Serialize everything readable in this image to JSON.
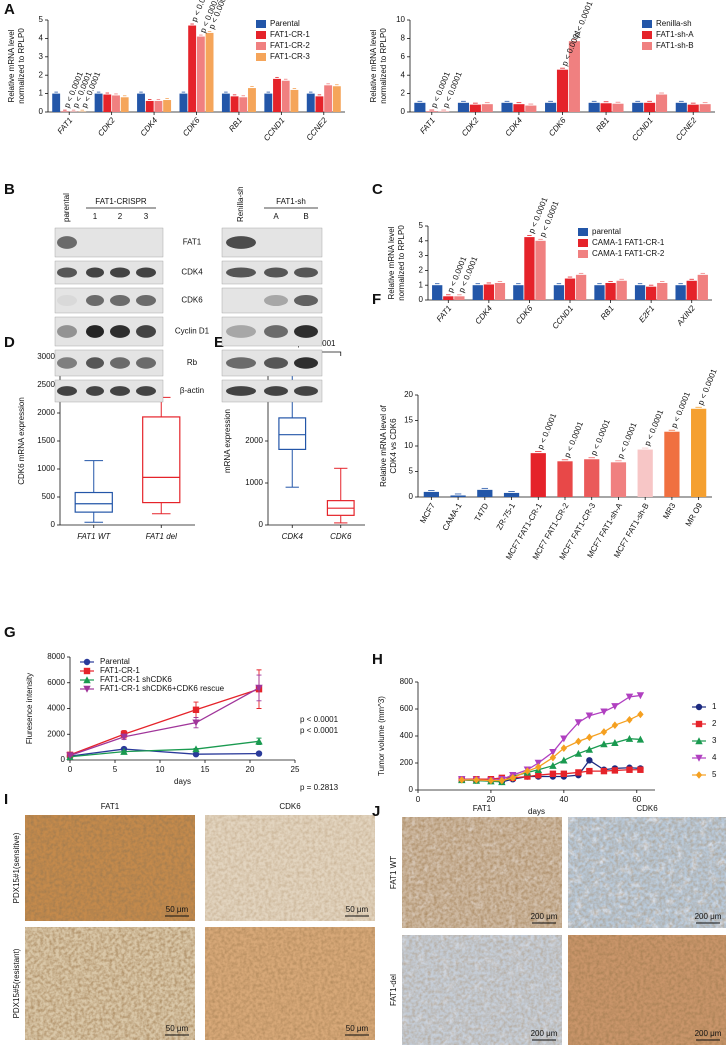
{
  "chart_data": [
    {
      "type": "bar",
      "panel": "A",
      "ylabel": [
        "Relative mRNA level",
        "normalized to RPLP0"
      ],
      "categories": [
        "FAT1",
        "CDK2",
        "CDK4",
        "CDK6",
        "RB1",
        "CCND1",
        "CCNE2"
      ],
      "series": [
        {
          "name": "Parental",
          "color": "#2356a8",
          "values": [
            1,
            1,
            1,
            1,
            1,
            1,
            1
          ]
        },
        {
          "name": "FAT1-CR-1",
          "color": "#e5232a",
          "values": [
            0.02,
            0.95,
            0.6,
            4.7,
            0.85,
            1.8,
            0.85
          ]
        },
        {
          "name": "FAT1-CR-2",
          "color": "#f08080",
          "values": [
            0.02,
            0.9,
            0.6,
            4.1,
            0.8,
            1.7,
            1.45
          ]
        },
        {
          "name": "FAT1-CR-3",
          "color": "#f5a55a",
          "values": [
            0.02,
            0.8,
            0.65,
            4.3,
            1.3,
            1.2,
            1.4
          ]
        }
      ],
      "ylim": [
        0,
        5
      ],
      "yticks": [
        0,
        1,
        2,
        3,
        4,
        5
      ],
      "annotations": [
        "p < 0.0001",
        "p < 0.0001",
        "p < 0.0001",
        "p < 0.0001",
        "p < 0.0001",
        "p < 0.0001"
      ]
    },
    {
      "type": "bar",
      "ylabel": [
        "Relative mRNA level",
        "normalized to RPLP0"
      ],
      "categories": [
        "FAT1",
        "CDK2",
        "CDK4",
        "CDK6",
        "RB1",
        "CCND1",
        "CCNE2"
      ],
      "series": [
        {
          "name": "Renilla-sh",
          "color": "#2356a8",
          "values": [
            1,
            1,
            1,
            1,
            1,
            1,
            1
          ]
        },
        {
          "name": "FAT1-sh-A",
          "color": "#e5232a",
          "values": [
            0.05,
            0.8,
            0.85,
            4.6,
            0.95,
            1.0,
            0.8
          ]
        },
        {
          "name": "FAT1-sh-B",
          "color": "#f08080",
          "values": [
            0.05,
            0.85,
            0.7,
            7.7,
            0.9,
            1.9,
            0.85
          ]
        }
      ],
      "ylim": [
        0,
        10
      ],
      "yticks": [
        0,
        2,
        4,
        6,
        8,
        10
      ],
      "annotations": [
        "p < 0.0001",
        "p < 0.0001",
        "p < 0.0001",
        "p < 0.0001"
      ]
    },
    {
      "type": "bar",
      "panel": "C",
      "ylabel": [
        "Relative mRNA level",
        "normalized to RPLP0"
      ],
      "categories": [
        "FAT1",
        "CDK4",
        "CDK6",
        "CCND1",
        "RB1",
        "E2F1",
        "AXIN2"
      ],
      "series": [
        {
          "name": "parental",
          "color": "#2356a8",
          "values": [
            1,
            1,
            1,
            1,
            1,
            1,
            1
          ]
        },
        {
          "name": "CAMA-1 FAT1-CR-1",
          "color": "#e5232a",
          "values": [
            0.25,
            1.05,
            4.25,
            1.45,
            1.15,
            0.9,
            1.3
          ]
        },
        {
          "name": "CAMA-1 FAT1-CR-2",
          "color": "#f08080",
          "values": [
            0.25,
            1.15,
            4.0,
            1.7,
            1.3,
            1.15,
            1.7
          ]
        }
      ],
      "ylim": [
        0,
        5
      ],
      "yticks": [
        0,
        1,
        2,
        3,
        4,
        5
      ],
      "annotations": [
        "p < 0.0001",
        "p < 0.0001",
        "p < 0.0001",
        "p < 0.0001"
      ]
    },
    {
      "type": "box",
      "panel": "D",
      "ylabel": [
        "CDK6 mRNA expression"
      ],
      "categories": [
        "FAT1 WT",
        "FAT1 del"
      ],
      "colors": [
        "#2356a8",
        "#e5232a"
      ],
      "boxes": [
        {
          "min": 50,
          "q1": 230,
          "median": 380,
          "q3": 580,
          "max": 1150
        },
        {
          "min": 200,
          "q1": 400,
          "median": 850,
          "q3": 1930,
          "max": 2280
        }
      ],
      "ylim": [
        0,
        3000
      ],
      "yticks": [
        0,
        500,
        1000,
        1500,
        2000,
        2500,
        3000
      ],
      "annotations": [
        "p < 0.0001"
      ]
    },
    {
      "type": "box",
      "panel": "E",
      "ylabel": [
        "mRNA expression"
      ],
      "categories": [
        "CDK4",
        "CDK6"
      ],
      "colors": [
        "#2356a8",
        "#e5232a"
      ],
      "boxes": [
        {
          "min": 900,
          "q1": 1800,
          "median": 2150,
          "q3": 2550,
          "max": 3700
        },
        {
          "min": 50,
          "q1": 230,
          "median": 400,
          "q3": 580,
          "max": 1350
        }
      ],
      "ylim": [
        0,
        4000
      ],
      "yticks": [
        0,
        1000,
        2000,
        3000,
        4000
      ],
      "annotations": [
        "p < 0.0001"
      ]
    },
    {
      "type": "bar",
      "panel": "F",
      "ylabel": [
        "Relative mRNA level of",
        "CDK4 vs CDK6"
      ],
      "categories": [
        "MCF7",
        "CAMA-1",
        "T47D",
        "ZR-75-1",
        "MCF7 FAT1-CR-1",
        "MCF7 FAT1-CR-2",
        "MCF7 FAT1-CR-3",
        "MCF7 FAT1-sh-A",
        "MCF7 FAT1-sh-B",
        "MR3",
        "MR O9"
      ],
      "series": [
        {
          "values": [
            1,
            0.3,
            1.4,
            0.8,
            8.6,
            7.0,
            7.4,
            6.8,
            9.3,
            12.8,
            17.3
          ],
          "colors": [
            "#2356a8",
            "#2356a8",
            "#2356a8",
            "#2356a8",
            "#e5232a",
            "#e84848",
            "#ea5a5a",
            "#f08080",
            "#f7c6c6",
            "#f07040",
            "#f5a030"
          ]
        }
      ],
      "ylim": [
        0,
        20
      ],
      "yticks": [
        0,
        5,
        10,
        15,
        20
      ],
      "annotations": [
        "p < 0.0001",
        "p < 0.0001",
        "p < 0.0001",
        "p < 0.0001",
        "p < 0.0001",
        "p < 0.0001",
        "p < 0.0001"
      ]
    },
    {
      "type": "line",
      "panel": "G",
      "ylabel": [
        "Fluresence intensity"
      ],
      "xlabel": "days",
      "x": [
        0,
        6,
        14,
        21
      ],
      "series": [
        {
          "name": "Parental",
          "color": "#2a3a9a",
          "marker": "circle",
          "values": [
            300,
            850,
            450,
            500
          ],
          "errors": [
            50,
            100,
            50,
            50
          ]
        },
        {
          "name": "FAT1-CR-1",
          "color": "#e5232a",
          "marker": "square",
          "values": [
            400,
            2000,
            3900,
            5500
          ],
          "errors": [
            50,
            300,
            600,
            1500
          ]
        },
        {
          "name": "FAT1-CR-1 shCDK6",
          "color": "#1a9a50",
          "marker": "triangle",
          "values": [
            250,
            650,
            850,
            1450
          ],
          "errors": [
            50,
            50,
            50,
            250
          ]
        },
        {
          "name": "FAT1-CR-1 shCDK6+CDK6 rescue",
          "color": "#a0359a",
          "marker": "triangle-down",
          "values": [
            350,
            1800,
            2900,
            5600
          ],
          "errors": [
            50,
            200,
            400,
            1000
          ]
        }
      ],
      "xlim": [
        0,
        25
      ],
      "xticks": [
        0,
        5,
        10,
        15,
        20,
        25
      ],
      "ylim": [
        0,
        8000
      ],
      "yticks": [
        0,
        2000,
        4000,
        6000,
        8000
      ],
      "annotations": [
        "p < 0.0001",
        "p < 0.0001",
        "p = 0.2813"
      ]
    },
    {
      "type": "line",
      "panel": "H",
      "ylabel": [
        "Tumor volume (mm^3)"
      ],
      "xlabel": "days",
      "x": [
        12,
        16,
        20,
        23,
        26,
        30,
        33,
        37,
        40,
        44,
        47,
        51,
        54,
        58,
        61
      ],
      "series": [
        {
          "name": "1",
          "color": "#1c2a80",
          "marker": "circle",
          "values": [
            75,
            70,
            75,
            60,
            80,
            100,
            100,
            100,
            100,
            110,
            220,
            150,
            160,
            165,
            160
          ]
        },
        {
          "name": "2",
          "color": "#e5232a",
          "marker": "square",
          "values": [
            80,
            80,
            80,
            90,
            90,
            100,
            110,
            120,
            120,
            130,
            140,
            140,
            145,
            150,
            150
          ]
        },
        {
          "name": "3",
          "color": "#1a9a50",
          "marker": "triangle",
          "values": [
            75,
            70,
            65,
            60,
            100,
            130,
            150,
            180,
            220,
            270,
            300,
            340,
            350,
            380,
            375
          ]
        },
        {
          "name": "4",
          "color": "#b040c0",
          "marker": "triangle-down",
          "values": [
            80,
            75,
            70,
            80,
            110,
            150,
            200,
            280,
            380,
            500,
            550,
            580,
            620,
            690,
            700
          ]
        },
        {
          "name": "5",
          "color": "#f5a020",
          "marker": "diamond",
          "values": [
            75,
            75,
            70,
            70,
            90,
            140,
            170,
            240,
            310,
            360,
            390,
            430,
            480,
            520,
            560
          ]
        }
      ],
      "xlim": [
        0,
        65
      ],
      "xticks": [
        0,
        20,
        40,
        60
      ],
      "ylim": [
        0,
        800
      ],
      "yticks": [
        0,
        200,
        400,
        600,
        800
      ]
    }
  ],
  "blots": {
    "panel": "B",
    "rows": [
      "FAT1",
      "CDK4",
      "CDK6",
      "Cyclin D1",
      "Rb",
      "β-actin"
    ],
    "left": {
      "group": "FAT1-CRISPR",
      "control": "parental",
      "lanes": [
        "1",
        "2",
        "3"
      ]
    },
    "right": {
      "group": "FAT1-sh",
      "control": "Renilla-sh",
      "lanes": [
        "A",
        "B"
      ]
    }
  },
  "ihc_i": {
    "panel": "I",
    "columns": [
      "FAT1",
      "CDK6"
    ],
    "rows": [
      "PDX15#1(sensitive)",
      "PDX15#5(resistant)"
    ],
    "scale": "50 μm"
  },
  "ihc_j": {
    "panel": "J",
    "columns": [
      "FAT1",
      "CDK6"
    ],
    "rows": [
      "FAT1 WT",
      "FAT1-del"
    ],
    "scale": "200 μm"
  }
}
